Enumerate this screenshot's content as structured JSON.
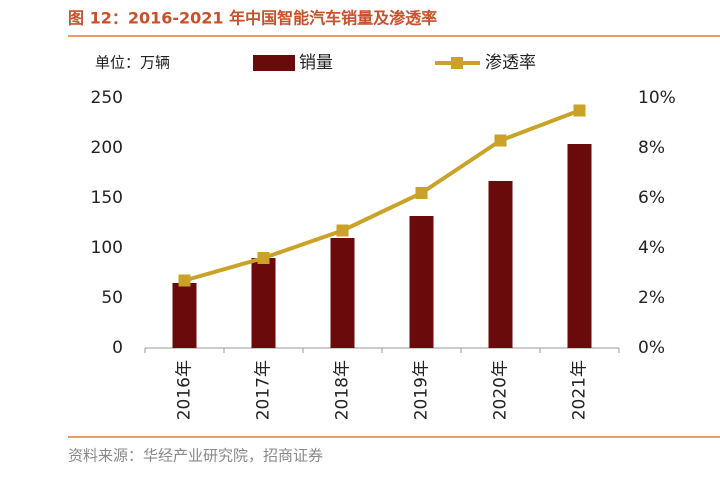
{
  "chart_data": {
    "type": "combo",
    "title": "图 12：2016-2021 年中国智能汽车销量及渗透率",
    "unit_label": "单位：万辆",
    "source": "资料来源：华经产业研究院，招商证券",
    "categories": [
      "2016年",
      "2017年",
      "2018年",
      "2019年",
      "2020年",
      "2021年"
    ],
    "series": [
      {
        "name": "销量",
        "type": "bar",
        "color": "#6b0a0a",
        "values": [
          65,
          90,
          110,
          132,
          167,
          204
        ]
      },
      {
        "name": "渗透率",
        "type": "line",
        "axis": "y2",
        "color": "#c9a227",
        "values": [
          2.7,
          3.6,
          4.7,
          6.2,
          8.3,
          9.5
        ]
      }
    ],
    "ylim": [
      0,
      250
    ],
    "yticks": [
      0,
      50,
      100,
      150,
      200,
      250
    ],
    "y2lim": [
      0,
      10
    ],
    "y2ticks": [
      {
        "value": 0,
        "label": "0%"
      },
      {
        "value": 2,
        "label": "2%"
      },
      {
        "value": 4,
        "label": "4%"
      },
      {
        "value": 6,
        "label": "6%"
      },
      {
        "value": 8,
        "label": "8%"
      },
      {
        "value": 10,
        "label": "10%"
      }
    ]
  }
}
